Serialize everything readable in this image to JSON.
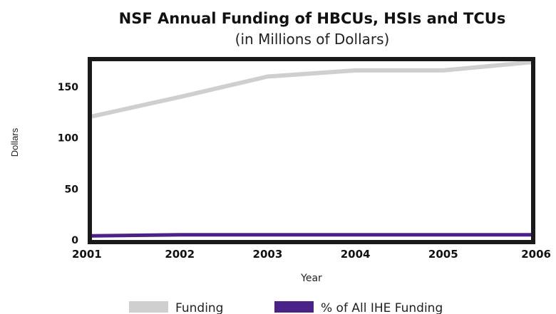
{
  "chart_data": {
    "type": "line",
    "title": "NSF Annual Funding of HBCUs, HSIs and TCUs",
    "subtitle": "(in Millions of Dollars)",
    "xlabel": "Year",
    "ylabel": "Dollars",
    "x": [
      "2001",
      "2002",
      "2003",
      "2004",
      "2005",
      "2006"
    ],
    "yticks": [
      "0",
      "50",
      "100",
      "150"
    ],
    "ylim": [
      0,
      175
    ],
    "grid": false,
    "legend_position": "bottom",
    "series": [
      {
        "name": "Funding",
        "color": "#cfcfcf",
        "values": [
          121,
          140,
          160,
          166,
          166,
          174
        ]
      },
      {
        "name": "% of All IHE Funding",
        "color": "#4b2287",
        "values": [
          4,
          5,
          5,
          5,
          5,
          5
        ]
      }
    ]
  }
}
